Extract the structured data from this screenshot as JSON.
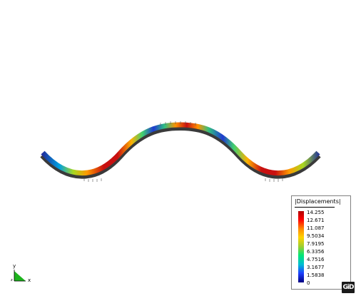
{
  "legend": {
    "title": "|Displacements|",
    "values": [
      "14.255",
      "12.671",
      "11.087",
      "9.5034",
      "7.9195",
      "6.3356",
      "4.7516",
      "3.1677",
      "1.5838",
      "0"
    ]
  },
  "axes": {
    "y_label": "y",
    "x_label": "x",
    "z_label": "z"
  },
  "logo": {
    "text": "GiD"
  },
  "colors": {
    "background": "#ffffff",
    "max": "#b20000",
    "min": "#000080"
  }
}
